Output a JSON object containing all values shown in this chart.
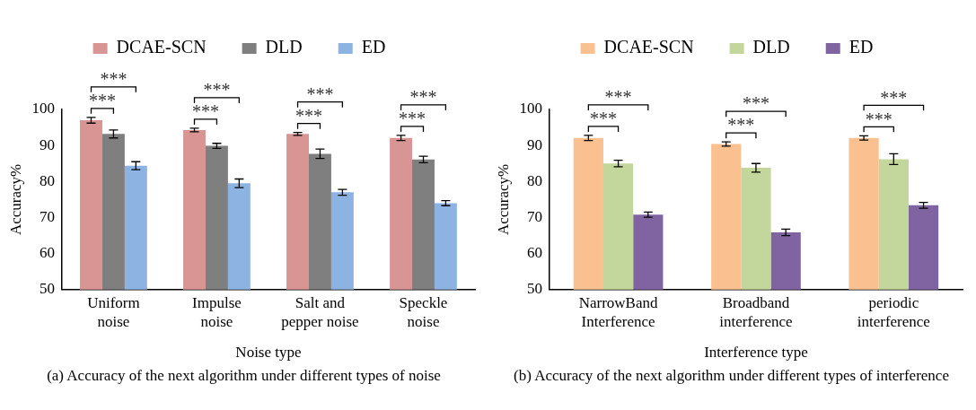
{
  "chart_data": [
    {
      "type": "bar",
      "title": "(a) Accuracy of the next algorithm under different types of noise",
      "xlabel": "Noise type",
      "ylabel": "Accuracy%",
      "categories": [
        "Uniform\nnoise",
        "Impulse\nnoise",
        "Salt and\npepper noise",
        "Speckle\nnoise"
      ],
      "series": [
        {
          "name": "DCAE-SCN",
          "color": "#d99594",
          "values": [
            97.0,
            94.3,
            93.2,
            92.1
          ],
          "errors": [
            0.8,
            0.5,
            0.4,
            0.7
          ]
        },
        {
          "name": "DLD",
          "color": "#7f7f7f",
          "values": [
            93.2,
            89.9,
            87.7,
            86.1
          ],
          "errors": [
            1.1,
            0.7,
            1.3,
            0.9
          ]
        },
        {
          "name": "ED",
          "color": "#8db3e2",
          "values": [
            84.4,
            79.5,
            77.0,
            74.0
          ],
          "errors": [
            1.1,
            1.2,
            0.8,
            0.7
          ]
        }
      ],
      "annotations": [
        "***",
        "***",
        "***",
        "***",
        "***",
        "***",
        "***",
        "***"
      ],
      "ylim": [
        50,
        100
      ],
      "yticks": [
        50,
        60,
        70,
        80,
        90,
        100
      ],
      "grid": false,
      "legend": "top"
    },
    {
      "type": "bar",
      "title": "(b) Accuracy of the next algorithm under different types of interference",
      "xlabel": "Interference type",
      "ylabel": "Accuracy%",
      "categories": [
        "NarrowBand\nInterference",
        "Broadband\ninterference",
        "periodic\ninterference"
      ],
      "series": [
        {
          "name": "DCAE-SCN",
          "color": "#fac090",
          "values": [
            92.1,
            90.4,
            92.1
          ],
          "errors": [
            0.7,
            0.6,
            0.6
          ]
        },
        {
          "name": "DLD",
          "color": "#c3d69b",
          "values": [
            85.0,
            83.8,
            86.2
          ],
          "errors": [
            0.9,
            1.2,
            1.5
          ]
        },
        {
          "name": "ED",
          "color": "#8064a2",
          "values": [
            70.8,
            65.9,
            73.4
          ],
          "errors": [
            0.7,
            0.9,
            0.8
          ]
        }
      ],
      "annotations": [
        "***",
        "***",
        "***",
        "***",
        "***",
        "***"
      ],
      "ylim": [
        50,
        100
      ],
      "yticks": [
        50,
        60,
        70,
        80,
        90,
        100
      ],
      "grid": false,
      "legend": "top"
    }
  ]
}
